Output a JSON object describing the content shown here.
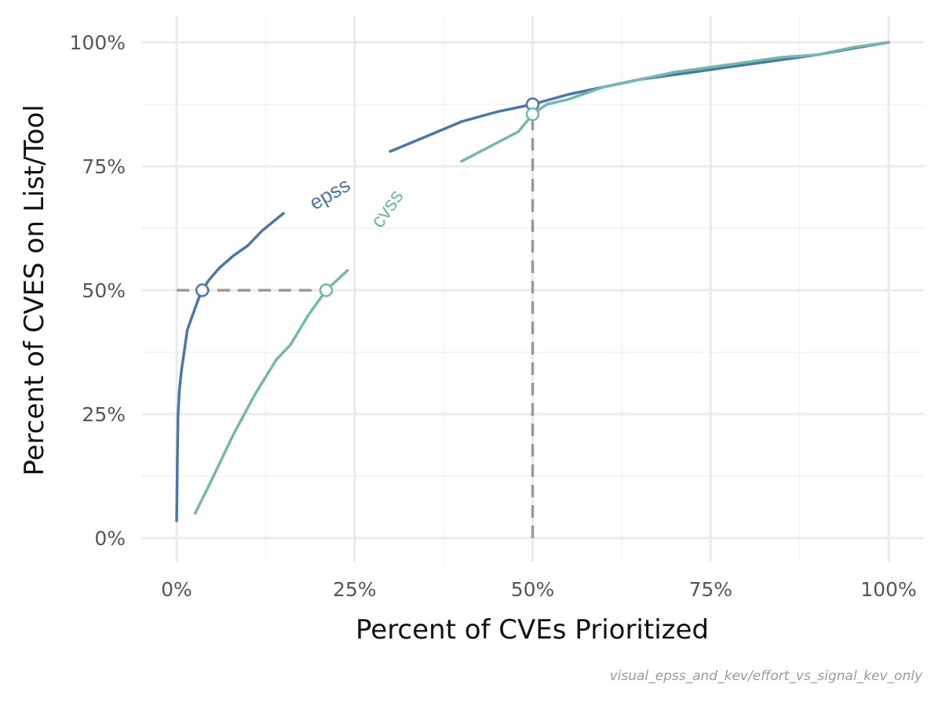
{
  "chart_data": {
    "type": "line",
    "title": "",
    "xlabel": "Percent of CVEs Prioritized",
    "ylabel": "Percent of CVES on List/Tool",
    "caption": "visual_epss_and_kev/effort_vs_signal_kev_only",
    "xlim": [
      0,
      1
    ],
    "ylim": [
      0,
      1
    ],
    "x_ticks": [
      0,
      0.25,
      0.5,
      0.75,
      1
    ],
    "x_tick_labels": [
      "0%",
      "25%",
      "50%",
      "75%",
      "100%"
    ],
    "y_ticks": [
      0,
      0.25,
      0.5,
      0.75,
      1
    ],
    "y_tick_labels": [
      "0%",
      "25%",
      "50%",
      "75%",
      "100%"
    ],
    "grid": true,
    "legend": "none (series labelled directly on lines)",
    "series": [
      {
        "name": "epss",
        "color": "#4a77a6",
        "label_at": [
          0.215,
          0.695
        ],
        "points": [
          [
            0.0,
            0.035
          ],
          [
            0.001,
            0.15
          ],
          [
            0.002,
            0.25
          ],
          [
            0.004,
            0.3
          ],
          [
            0.007,
            0.34
          ],
          [
            0.01,
            0.37
          ],
          [
            0.015,
            0.42
          ],
          [
            0.02,
            0.44
          ],
          [
            0.025,
            0.46
          ],
          [
            0.03,
            0.48
          ],
          [
            0.036,
            0.5
          ],
          [
            0.045,
            0.52
          ],
          [
            0.06,
            0.545
          ],
          [
            0.08,
            0.57
          ],
          [
            0.1,
            0.59
          ],
          [
            0.12,
            0.62
          ],
          [
            0.15,
            0.655
          ],
          [
            0.2,
            0.7
          ],
          [
            0.25,
            0.74
          ],
          [
            0.3,
            0.78
          ],
          [
            0.35,
            0.81
          ],
          [
            0.4,
            0.84
          ],
          [
            0.45,
            0.86
          ],
          [
            0.5,
            0.875
          ],
          [
            0.55,
            0.895
          ],
          [
            0.6,
            0.91
          ],
          [
            0.65,
            0.925
          ],
          [
            0.7,
            0.935
          ],
          [
            0.75,
            0.945
          ],
          [
            0.8,
            0.955
          ],
          [
            0.85,
            0.965
          ],
          [
            0.9,
            0.975
          ],
          [
            0.95,
            0.988
          ],
          [
            1.0,
            1.0
          ]
        ],
        "markers": [
          [
            0.036,
            0.5
          ],
          [
            0.5,
            0.875
          ]
        ]
      },
      {
        "name": "cvss",
        "color": "#72b7b1",
        "label_at": [
          0.295,
          0.665
        ],
        "points": [
          [
            0.026,
            0.05
          ],
          [
            0.05,
            0.12
          ],
          [
            0.08,
            0.21
          ],
          [
            0.11,
            0.29
          ],
          [
            0.14,
            0.36
          ],
          [
            0.16,
            0.39
          ],
          [
            0.185,
            0.45
          ],
          [
            0.21,
            0.5
          ],
          [
            0.24,
            0.54
          ],
          [
            0.27,
            0.6
          ],
          [
            0.3,
            0.67
          ],
          [
            0.33,
            0.73
          ],
          [
            0.4,
            0.76
          ],
          [
            0.48,
            0.82
          ],
          [
            0.5,
            0.855
          ],
          [
            0.52,
            0.875
          ],
          [
            0.55,
            0.885
          ],
          [
            0.6,
            0.91
          ],
          [
            0.65,
            0.925
          ],
          [
            0.7,
            0.94
          ],
          [
            0.75,
            0.95
          ],
          [
            0.8,
            0.96
          ],
          [
            0.85,
            0.97
          ],
          [
            0.9,
            0.975
          ],
          [
            0.95,
            0.99
          ],
          [
            1.0,
            1.0
          ]
        ],
        "markers": [
          [
            0.21,
            0.5
          ],
          [
            0.5,
            0.855
          ]
        ]
      }
    ],
    "reference_lines": [
      {
        "type": "horizontal",
        "y": 0.5,
        "x_from": 0,
        "x_to": 0.21,
        "color": "#999999"
      },
      {
        "type": "vertical",
        "x": 0.5,
        "y_from": 0,
        "y_to": 0.855,
        "color": "#999999"
      }
    ]
  }
}
